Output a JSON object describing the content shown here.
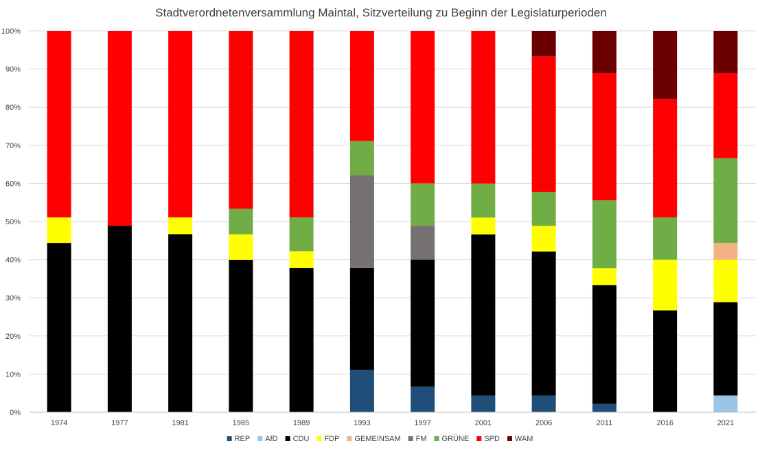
{
  "chart_data": {
    "type": "bar",
    "stacked": true,
    "normalized": true,
    "title": "Stadtverordnetenversammlung Maintal, Sitzverteilung zu Beginn der Legislaturperioden",
    "xlabel": "",
    "ylabel": "",
    "ylim": [
      0,
      100
    ],
    "y_ticks": [
      "0%",
      "10%",
      "20%",
      "30%",
      "40%",
      "50%",
      "60%",
      "70%",
      "80%",
      "90%",
      "100%"
    ],
    "categories": [
      "1974",
      "1977",
      "1981",
      "1985",
      "1989",
      "1993",
      "1997",
      "2001",
      "2006",
      "2011",
      "2016",
      "2021"
    ],
    "series": [
      {
        "name": "REP",
        "color": "#1f4e79",
        "values": [
          0,
          0,
          0,
          0,
          0,
          11.1,
          6.7,
          4.4,
          4.4,
          2.2,
          0,
          0
        ]
      },
      {
        "name": "AfD",
        "color": "#9dc3e6",
        "values": [
          0,
          0,
          0,
          0,
          0,
          0,
          0,
          0,
          0,
          0,
          0,
          4.4
        ]
      },
      {
        "name": "CDU",
        "color": "#000000",
        "values": [
          44.4,
          48.9,
          46.7,
          40.0,
          37.8,
          26.7,
          33.3,
          42.2,
          37.8,
          31.1,
          26.7,
          24.4
        ]
      },
      {
        "name": "FDP",
        "color": "#ffff00",
        "values": [
          6.7,
          0,
          4.4,
          6.7,
          4.4,
          0,
          0,
          4.4,
          6.7,
          4.4,
          13.3,
          11.1
        ]
      },
      {
        "name": "GEMEINSAM",
        "color": "#f4b183",
        "values": [
          0,
          0,
          0,
          0,
          0,
          0,
          0,
          0,
          0,
          0,
          0,
          4.4
        ]
      },
      {
        "name": "FM",
        "color": "#767171",
        "values": [
          0,
          0,
          0,
          0,
          0,
          24.4,
          8.9,
          0,
          0,
          0,
          0,
          0
        ]
      },
      {
        "name": "GRÜNE",
        "color": "#70ad47",
        "values": [
          0,
          0,
          0,
          6.7,
          8.9,
          8.9,
          11.1,
          8.9,
          8.9,
          17.8,
          11.1,
          22.2
        ]
      },
      {
        "name": "SPD",
        "color": "#ff0000",
        "values": [
          48.9,
          51.1,
          48.9,
          46.7,
          48.9,
          28.9,
          40.0,
          40.0,
          35.6,
          33.3,
          31.1,
          22.2
        ]
      },
      {
        "name": "WAM",
        "color": "#6b0000",
        "values": [
          0,
          0,
          0,
          0,
          0,
          0,
          0,
          0,
          6.7,
          11.1,
          17.8,
          11.1
        ]
      }
    ],
    "legend_position": "bottom",
    "grid": true
  }
}
